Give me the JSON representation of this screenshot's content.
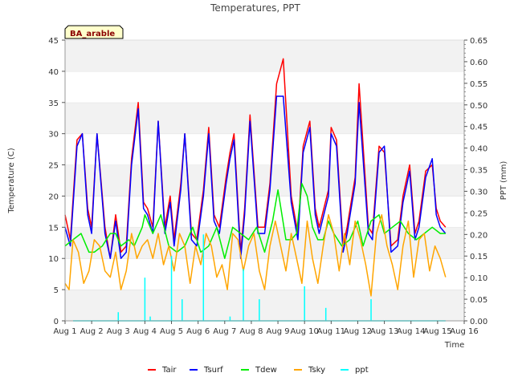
{
  "chart_data": {
    "type": "line",
    "title": "Temperatures, PPT",
    "site_label": "BA_arable",
    "xlabel": "Time",
    "ylabel_left": "Temperature (C)",
    "ylabel_right": "PPT (mm)",
    "xlim": [
      1,
      16
    ],
    "ylim_left": [
      0,
      45
    ],
    "ylim_right": [
      0,
      0.65
    ],
    "x_ticks": [
      {
        "v": 1,
        "label": "Aug 1"
      },
      {
        "v": 2,
        "label": "Aug 2"
      },
      {
        "v": 3,
        "label": "Aug 3"
      },
      {
        "v": 4,
        "label": "Aug 4"
      },
      {
        "v": 5,
        "label": "Aug 5"
      },
      {
        "v": 6,
        "label": "Aug 6"
      },
      {
        "v": 7,
        "label": "Aug 7"
      },
      {
        "v": 8,
        "label": "Aug 8"
      },
      {
        "v": 9,
        "label": "Aug 9"
      },
      {
        "v": 10,
        "label": "Aug 10"
      },
      {
        "v": 11,
        "label": "Aug 11"
      },
      {
        "v": 12,
        "label": "Aug 12"
      },
      {
        "v": 13,
        "label": "Aug 13"
      },
      {
        "v": 14,
        "label": "Aug 14"
      },
      {
        "v": 15,
        "label": "Aug 15"
      },
      {
        "v": 16,
        "label": "Aug 16"
      }
    ],
    "y_ticks_left": [
      "0",
      "5",
      "10",
      "15",
      "20",
      "25",
      "30",
      "35",
      "40",
      "45"
    ],
    "y_ticks_right": [
      "0.00",
      "0.05",
      "0.10",
      "0.15",
      "0.20",
      "0.25",
      "0.30",
      "0.35",
      "0.40",
      "0.45",
      "0.50",
      "0.55",
      "0.60",
      "0.65"
    ],
    "grid": "horizontal bands",
    "legend_position": "bottom",
    "series": [
      {
        "name": "Tair",
        "color": "#ff0000",
        "axis": "left",
        "x": [
          1.0,
          1.2,
          1.45,
          1.65,
          1.85,
          2.0,
          2.2,
          2.5,
          2.7,
          2.9,
          3.1,
          3.3,
          3.5,
          3.75,
          3.95,
          4.1,
          4.3,
          4.5,
          4.75,
          4.95,
          5.1,
          5.35,
          5.5,
          5.75,
          5.95,
          6.2,
          6.4,
          6.6,
          6.8,
          7.05,
          7.2,
          7.35,
          7.6,
          7.75,
          7.95,
          8.25,
          8.5,
          8.7,
          8.95,
          9.2,
          9.5,
          9.75,
          9.95,
          10.2,
          10.4,
          10.55,
          10.9,
          11.0,
          11.2,
          11.45,
          11.6,
          11.9,
          12.05,
          12.4,
          12.55,
          12.8,
          13.0,
          13.25,
          13.5,
          13.7,
          13.95,
          14.15,
          14.3,
          14.55,
          14.8,
          14.95,
          15.1,
          15.3
        ],
        "y": [
          17,
          13,
          29,
          30,
          18,
          15,
          30,
          15,
          10,
          17,
          11,
          12,
          26,
          35,
          19,
          18,
          15,
          32,
          15,
          20,
          13,
          22,
          30,
          14,
          13,
          21,
          31,
          17,
          15,
          23,
          27,
          30,
          11,
          18,
          33,
          15,
          15,
          22,
          38,
          42,
          20,
          14,
          28,
          32,
          18,
          15,
          21,
          31,
          29,
          12,
          15,
          23,
          38,
          15,
          14,
          28,
          27,
          12,
          13,
          20,
          25,
          14,
          16,
          24,
          25,
          18,
          16,
          15
        ]
      },
      {
        "name": "Tsurf",
        "color": "#0000ff",
        "axis": "left",
        "x": [
          1.0,
          1.2,
          1.45,
          1.65,
          1.85,
          2.0,
          2.2,
          2.5,
          2.7,
          2.9,
          3.1,
          3.3,
          3.5,
          3.75,
          3.95,
          4.1,
          4.3,
          4.5,
          4.75,
          4.95,
          5.1,
          5.35,
          5.5,
          5.75,
          5.95,
          6.2,
          6.4,
          6.6,
          6.8,
          7.05,
          7.2,
          7.35,
          7.6,
          7.75,
          7.95,
          8.25,
          8.5,
          8.7,
          8.95,
          9.2,
          9.5,
          9.75,
          9.95,
          10.2,
          10.4,
          10.55,
          10.9,
          11.0,
          11.2,
          11.45,
          11.6,
          11.9,
          12.05,
          12.4,
          12.55,
          12.8,
          13.0,
          13.25,
          13.5,
          13.7,
          13.95,
          14.15,
          14.3,
          14.55,
          14.8,
          14.95,
          15.1,
          15.3
        ],
        "y": [
          15,
          12,
          28,
          30,
          17,
          14,
          30,
          14,
          10,
          16,
          10,
          11,
          25,
          34,
          18,
          17,
          14,
          32,
          14,
          19,
          12,
          21,
          30,
          13,
          12,
          20,
          30,
          16,
          14,
          22,
          26,
          29,
          10,
          17,
          32,
          14,
          14,
          21,
          36,
          36,
          19,
          13,
          27,
          31,
          17,
          14,
          20,
          30,
          28,
          11,
          14,
          22,
          35,
          14,
          13,
          27,
          28,
          11,
          12,
          19,
          24,
          13,
          15,
          23,
          26,
          17,
          15,
          14
        ]
      },
      {
        "name": "Tdew",
        "color": "#00ee00",
        "axis": "left",
        "x": [
          1.0,
          1.3,
          1.6,
          1.9,
          2.1,
          2.4,
          2.7,
          2.9,
          3.1,
          3.4,
          3.6,
          3.9,
          4.0,
          4.3,
          4.6,
          4.9,
          5.2,
          5.5,
          5.8,
          6.1,
          6.4,
          6.7,
          7.0,
          7.3,
          7.6,
          7.9,
          8.2,
          8.5,
          8.8,
          9.0,
          9.3,
          9.5,
          9.7,
          9.9,
          10.1,
          10.3,
          10.5,
          10.7,
          10.9,
          11.1,
          11.4,
          11.7,
          12.0,
          12.2,
          12.5,
          12.8,
          13.0,
          13.3,
          13.6,
          13.9,
          14.2,
          14.5,
          14.8,
          15.1,
          15.3
        ],
        "y": [
          12,
          13,
          14,
          11,
          11,
          12,
          14,
          14,
          12,
          13,
          12,
          15,
          17,
          14,
          17,
          12,
          11,
          12,
          15,
          11,
          12,
          15,
          10,
          15,
          14,
          13,
          15,
          11,
          16,
          21,
          13,
          13,
          14,
          22,
          20,
          15,
          13,
          13,
          16,
          14,
          12,
          13,
          16,
          12,
          16,
          17,
          14,
          15,
          16,
          14,
          13,
          14,
          15,
          14,
          14
        ]
      },
      {
        "name": "Tsky",
        "color": "#ffa500",
        "axis": "left",
        "x": [
          1.0,
          1.15,
          1.3,
          1.5,
          1.7,
          1.9,
          2.1,
          2.3,
          2.5,
          2.7,
          2.9,
          3.1,
          3.3,
          3.5,
          3.7,
          3.9,
          4.1,
          4.3,
          4.5,
          4.7,
          4.9,
          5.1,
          5.3,
          5.5,
          5.7,
          5.9,
          6.1,
          6.3,
          6.5,
          6.7,
          6.9,
          7.1,
          7.3,
          7.5,
          7.7,
          7.9,
          8.1,
          8.3,
          8.5,
          8.7,
          8.9,
          9.1,
          9.3,
          9.5,
          9.7,
          9.9,
          10.1,
          10.3,
          10.5,
          10.7,
          10.9,
          11.1,
          11.3,
          11.5,
          11.7,
          11.9,
          12.1,
          12.3,
          12.5,
          12.7,
          12.9,
          13.1,
          13.3,
          13.5,
          13.7,
          13.9,
          14.1,
          14.3,
          14.5,
          14.7,
          14.9,
          15.1,
          15.3
        ],
        "y": [
          6,
          5,
          13,
          11,
          6,
          8,
          13,
          12,
          8,
          7,
          11,
          5,
          8,
          14,
          10,
          12,
          13,
          10,
          14,
          9,
          12,
          8,
          14,
          12,
          6,
          12,
          9,
          14,
          12,
          7,
          9,
          5,
          14,
          13,
          8,
          12,
          14,
          8,
          5,
          12,
          16,
          12,
          8,
          14,
          10,
          6,
          16,
          10,
          6,
          12,
          17,
          14,
          8,
          14,
          9,
          16,
          13,
          9,
          4,
          14,
          17,
          12,
          9,
          5,
          12,
          16,
          7,
          13,
          14,
          8,
          12,
          10,
          7
        ]
      },
      {
        "name": "ppt",
        "color": "#00ffff",
        "axis": "right",
        "style": "spikes",
        "x": [
          3.0,
          3.5,
          4.0,
          4.2,
          4.6,
          5.0,
          5.4,
          5.8,
          6.2,
          6.8,
          7.2,
          7.7,
          8.1,
          8.3,
          8.7,
          9.2,
          9.6,
          10.0,
          10.4,
          10.8,
          11.2,
          11.6,
          12.0,
          12.5,
          12.9,
          13.3,
          13.7,
          14.0,
          14.3,
          14.6,
          14.9,
          15.2
        ],
        "y": [
          0.02,
          0.0,
          0.1,
          0.01,
          0.0,
          0.15,
          0.05,
          0.0,
          0.2,
          0.0,
          0.01,
          0.12,
          0.0,
          0.05,
          0.0,
          0.0,
          0.0,
          0.08,
          0.0,
          0.03,
          0.0,
          0.0,
          0.0,
          0.05,
          0.0,
          0.0,
          0.0,
          0.0,
          0.0,
          0.0,
          0.0,
          0.0
        ]
      }
    ]
  }
}
